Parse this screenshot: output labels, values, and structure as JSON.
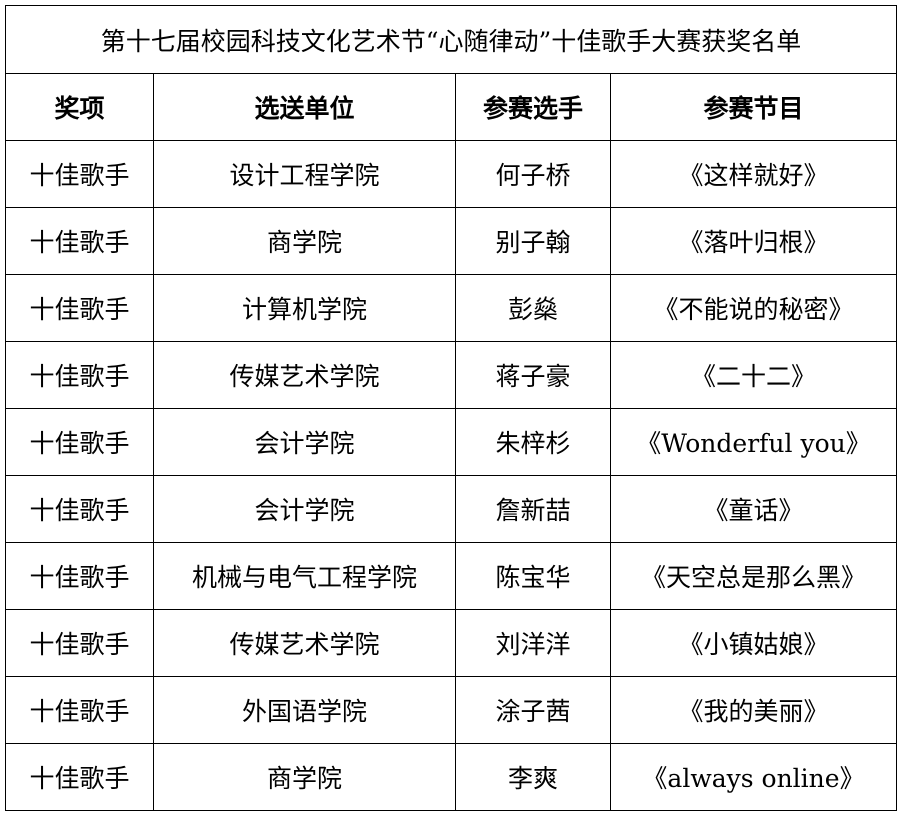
{
  "title": "第十七届校园科技文化艺术节“心随律动”十佳歌手大赛获奖名单",
  "headers": [
    "奖项",
    "选送单位",
    "参赛选手",
    "参赛节目"
  ],
  "rows": [
    [
      "十佳歌手",
      "设计工程学院",
      "何子桥",
      "《这样就好》"
    ],
    [
      "十佳歌手",
      "商学院",
      "别子翰",
      "《落叶归根》"
    ],
    [
      "十佳歌手",
      "计算机学院",
      "彭燊",
      "《不能说的秘密》"
    ],
    [
      "十佳歌手",
      "传媒艺术学院",
      "蒋子豪",
      "《二十二》"
    ],
    [
      "十佳歌手",
      "会计学院",
      "朱梓杉",
      "《Wonderful you》"
    ],
    [
      "十佳歌手",
      "会计学院",
      "詹新喆",
      "《童话》"
    ],
    [
      "十佳歌手",
      "机械与电气工程学院",
      "陈宝华",
      "《天空总是那么黑》"
    ],
    [
      "十佳歌手",
      "传媒艺术学院",
      "刘洋洋",
      "《小镇姑娘》"
    ],
    [
      "十佳歌手",
      "外国语学院",
      "涂子茜",
      "《我的美丽》"
    ],
    [
      "十佳歌手",
      "商学院",
      "李爽",
      "《always online》"
    ]
  ]
}
